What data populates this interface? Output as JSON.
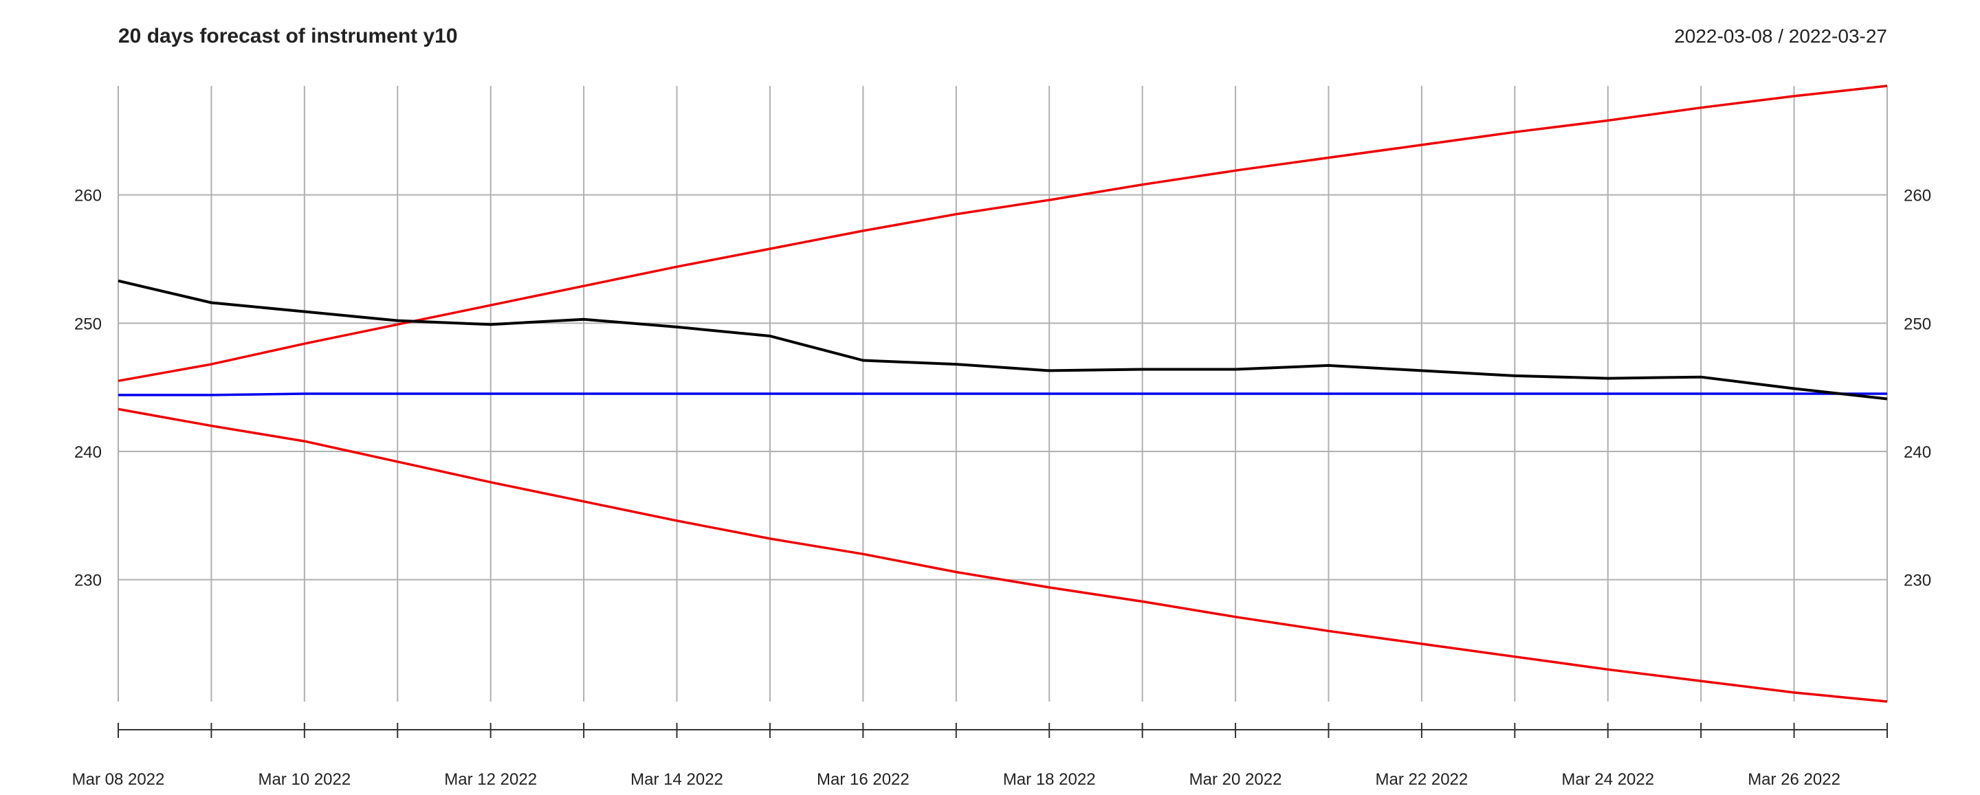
{
  "chart_data": {
    "type": "line",
    "title": "20 days forecast of instrument y10",
    "date_range": "2022-03-08 / 2022-03-27",
    "x": [
      "2022-03-08",
      "2022-03-09",
      "2022-03-10",
      "2022-03-11",
      "2022-03-12",
      "2022-03-13",
      "2022-03-14",
      "2022-03-15",
      "2022-03-16",
      "2022-03-17",
      "2022-03-18",
      "2022-03-19",
      "2022-03-20",
      "2022-03-21",
      "2022-03-22",
      "2022-03-23",
      "2022-03-24",
      "2022-03-25",
      "2022-03-26",
      "2022-03-27"
    ],
    "x_tick_labels": [
      "Mar 08 2022",
      "Mar 10 2022",
      "Mar 12 2022",
      "Mar 14 2022",
      "Mar 16 2022",
      "Mar 18 2022",
      "Mar 20 2022",
      "Mar 22 2022",
      "Mar 24 2022",
      "Mar 26 2022"
    ],
    "y_ticks": [
      230,
      240,
      250,
      260
    ],
    "ylim": [
      220.5,
      268.5
    ],
    "grid": true,
    "series": [
      {
        "key": "observed",
        "color": "#000000",
        "values": [
          253.3,
          251.6,
          250.9,
          250.2,
          249.9,
          250.3,
          249.7,
          249.0,
          247.1,
          246.8,
          246.3,
          246.4,
          246.4,
          246.7,
          246.3,
          245.9,
          245.7,
          245.8,
          244.9,
          244.1
        ]
      },
      {
        "key": "forecast",
        "color": "#0000ee",
        "values": [
          244.4,
          244.4,
          244.5,
          244.5,
          244.5,
          244.5,
          244.5,
          244.5,
          244.5,
          244.5,
          244.5,
          244.5,
          244.5,
          244.5,
          244.5,
          244.5,
          244.5,
          244.5,
          244.5,
          244.5
        ]
      },
      {
        "key": "upper",
        "color": "#ee0000",
        "values": [
          245.5,
          246.8,
          248.4,
          249.9,
          251.4,
          252.9,
          254.4,
          255.8,
          257.2,
          258.5,
          259.6,
          260.8,
          261.9,
          262.9,
          263.9,
          264.9,
          265.8,
          266.8,
          267.7,
          268.5
        ]
      },
      {
        "key": "lower",
        "color": "#ee0000",
        "values": [
          243.3,
          242.0,
          240.8,
          239.2,
          237.6,
          236.1,
          234.6,
          233.2,
          232.0,
          230.6,
          229.4,
          228.3,
          227.1,
          226.0,
          225.0,
          224.0,
          223.0,
          222.1,
          221.2,
          220.5
        ]
      }
    ]
  }
}
